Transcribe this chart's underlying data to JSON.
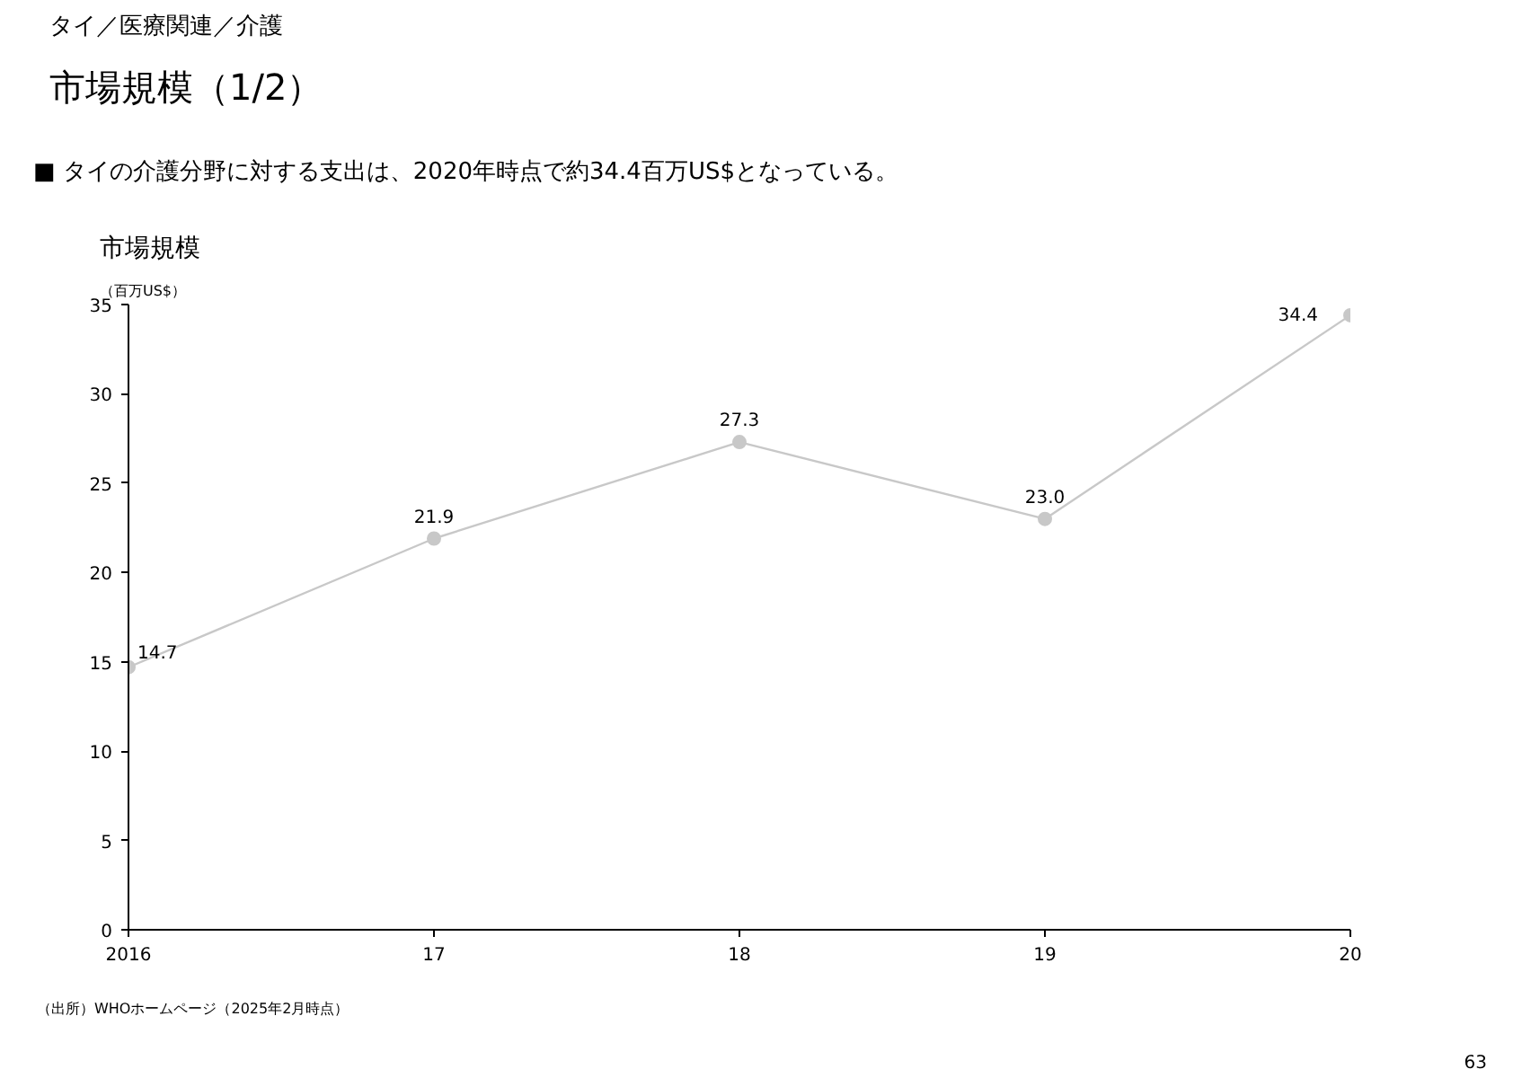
{
  "chart_data": {
    "type": "line",
    "title": "市場規模（1/2）",
    "subtitle": "■ タイの介護分野に対する支出は、2020年時点で約34.4百万US$となっている。",
    "annotations": [
      "タイ／医療関連／介護",
      "市場規模",
      "（出所）WHOホームページ（2025年2月時点）",
      "63"
    ],
    "ylabel": "（百万US$）",
    "categories": [
      "2016",
      "17",
      "18",
      "19",
      "20"
    ],
    "series": [
      {
        "color": "#c8c8c8",
        "values": [
          14.7,
          21.9,
          27.3,
          23.0,
          34.4
        ],
        "value_labels": [
          "14.7",
          "21.9",
          "27.3",
          "23.0",
          "34.4"
        ]
      }
    ],
    "ylim": [
      0,
      35
    ],
    "yticks": [
      0,
      5,
      10,
      15,
      20,
      25,
      30,
      35
    ],
    "grid": false,
    "marker": "circle",
    "line_style": "solid"
  }
}
